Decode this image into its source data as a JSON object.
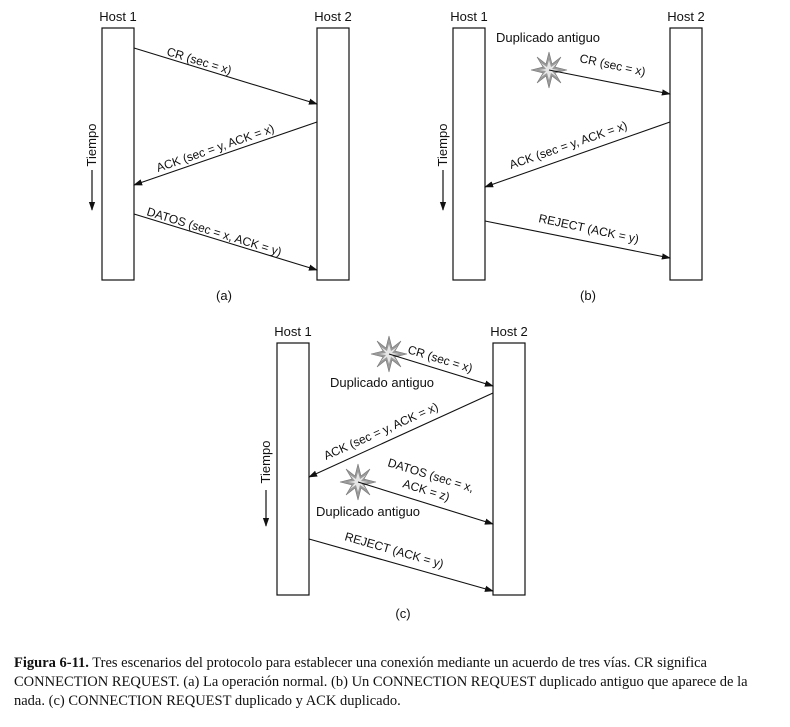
{
  "diagrams": {
    "a": {
      "host1": "Host 1",
      "host2": "Host 2",
      "time_label": "Tiempo",
      "msg1": "CR (sec = x)",
      "msg2": "ACK (sec = y, ACK = x)",
      "msg3": "DATOS (sec = x, ACK = y)",
      "sublabel": "(a)"
    },
    "b": {
      "host1": "Host 1",
      "host2": "Host 2",
      "time_label": "Tiempo",
      "old_dup": "Duplicado antiguo",
      "msg1": "CR (sec = x)",
      "msg2": "ACK (sec = y, ACK = x)",
      "msg3": "REJECT (ACK = y)",
      "sublabel": "(b)"
    },
    "c": {
      "host1": "Host 1",
      "host2": "Host 2",
      "time_label": "Tiempo",
      "old_dup_1": "Duplicado antiguo",
      "msg1": "CR (sec = x)",
      "msg2": "ACK (sec = y, ACK = x)",
      "msg3_line1": "DATOS (sec = x,",
      "msg3_line2": "ACK = z)",
      "old_dup_2": "Duplicado antiguo",
      "msg4": "REJECT (ACK = y)",
      "sublabel": "(c)"
    }
  },
  "caption": {
    "label": "Figura 6-11.",
    "text": "Tres escenarios del protocolo para establecer una conexión mediante un acuerdo de tres vías. CR significa CONNECTION REQUEST. (a) La operación normal. (b) Un CONNECTION REQUEST duplicado antiguo que aparece de la nada. (c) CONNECTION REQUEST duplicado y ACK duplicado."
  }
}
